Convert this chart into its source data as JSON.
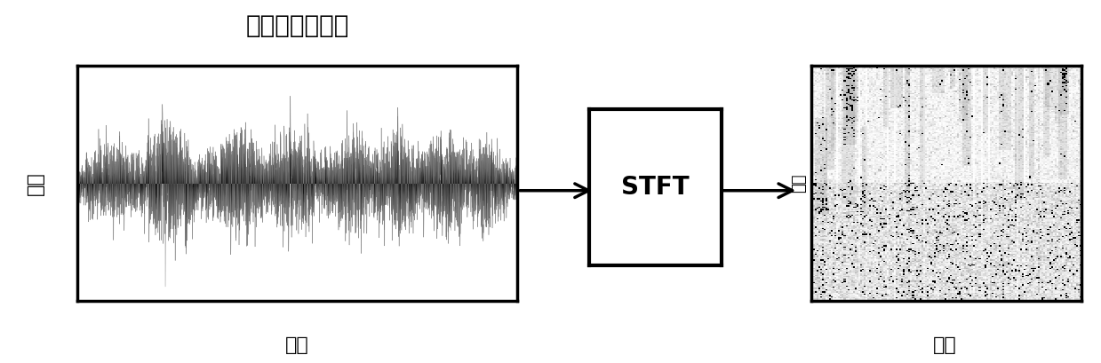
{
  "title_text": "输入的混叠语音",
  "waveform_xlabel": "时间",
  "waveform_ylabel": "幅値",
  "stft_label": "STFT",
  "spectrogram_xlabel": "时间",
  "spectrogram_ylabel": "频率",
  "bg_color": "#ffffff",
  "box_color": "#000000",
  "text_color": "#000000",
  "fig_width": 12.39,
  "fig_height": 4.09,
  "dpi": 100
}
